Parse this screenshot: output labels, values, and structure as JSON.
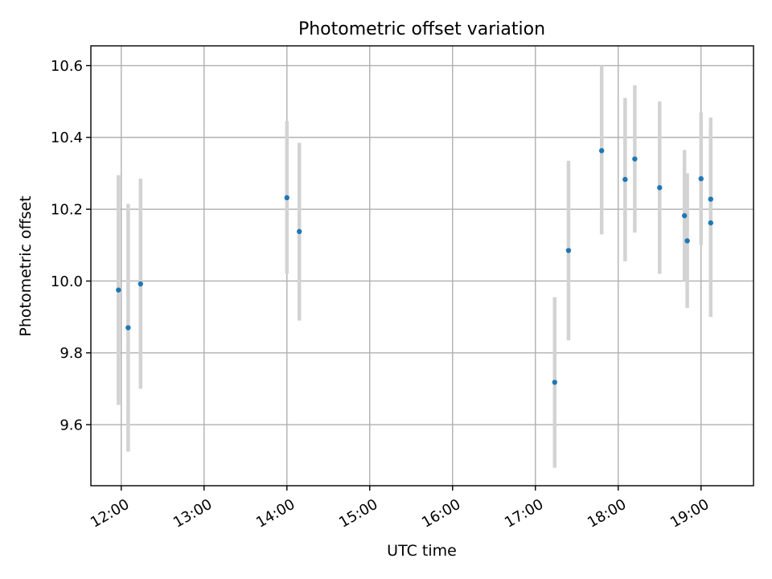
{
  "chart_data": {
    "type": "scatter",
    "title": "Photometric offset variation",
    "xlabel": "UTC time",
    "ylabel": "Photometric offset",
    "xlim": [
      "11:38",
      "19:38"
    ],
    "ylim": [
      9.43,
      10.655
    ],
    "grid": true,
    "x_ticks": [
      "12:00",
      "13:00",
      "14:00",
      "15:00",
      "16:00",
      "17:00",
      "18:00",
      "19:00"
    ],
    "y_ticks": [
      9.6,
      9.8,
      10.0,
      10.2,
      10.4,
      10.6
    ],
    "y_tick_labels": [
      "9.6",
      "9.8",
      "10.0",
      "10.2",
      "10.4",
      "10.6"
    ],
    "marker_color": "#1f77b4",
    "errorbar_color": "#d3d3d3",
    "points": [
      {
        "x": "11:58",
        "y": 9.975,
        "err_low": 9.655,
        "err_high": 10.295
      },
      {
        "x": "12:05",
        "y": 9.87,
        "err_low": 9.525,
        "err_high": 10.215
      },
      {
        "x": "12:14",
        "y": 9.992,
        "err_low": 9.7,
        "err_high": 10.285
      },
      {
        "x": "14:00",
        "y": 10.232,
        "err_low": 10.02,
        "err_high": 10.445
      },
      {
        "x": "14:09",
        "y": 10.138,
        "err_low": 9.89,
        "err_high": 10.385
      },
      {
        "x": "17:14",
        "y": 9.718,
        "err_low": 9.48,
        "err_high": 9.955
      },
      {
        "x": "17:24",
        "y": 10.085,
        "err_low": 9.835,
        "err_high": 10.335
      },
      {
        "x": "17:48",
        "y": 10.363,
        "err_low": 10.13,
        "err_high": 10.6
      },
      {
        "x": "18:05",
        "y": 10.283,
        "err_low": 10.055,
        "err_high": 10.51
      },
      {
        "x": "18:12",
        "y": 10.34,
        "err_low": 10.135,
        "err_high": 10.545
      },
      {
        "x": "18:30",
        "y": 10.26,
        "err_low": 10.02,
        "err_high": 10.5
      },
      {
        "x": "18:48",
        "y": 10.182,
        "err_low": 10.0,
        "err_high": 10.365
      },
      {
        "x": "18:50",
        "y": 10.112,
        "err_low": 9.925,
        "err_high": 10.3
      },
      {
        "x": "19:00",
        "y": 10.285,
        "err_low": 10.1,
        "err_high": 10.47
      },
      {
        "x": "19:07",
        "y": 10.228,
        "err_low": 10.0,
        "err_high": 10.455
      },
      {
        "x": "19:07",
        "y": 10.162,
        "err_low": 9.9,
        "err_high": 10.425
      }
    ]
  }
}
